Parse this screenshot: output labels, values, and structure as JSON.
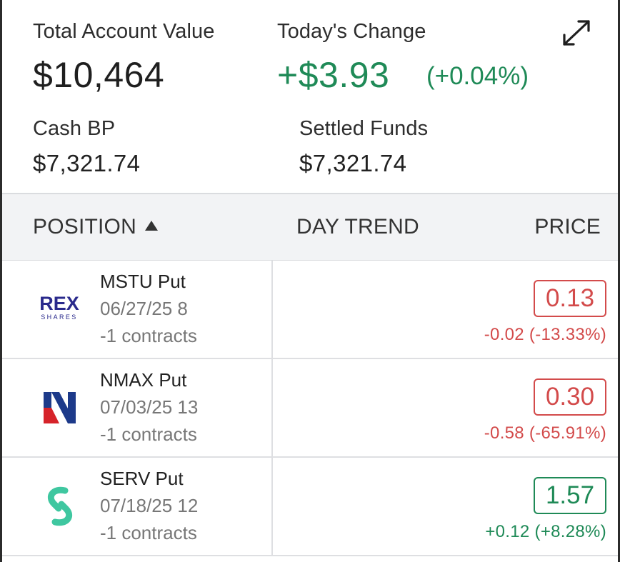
{
  "summary": {
    "total_label": "Total Account Value",
    "total_value": "$10,464",
    "change_label": "Today's Change",
    "change_value": "+$3.93",
    "change_pct": "(+0.04%)",
    "cash_label": "Cash BP",
    "cash_value": "$7,321.74",
    "settled_label": "Settled Funds",
    "settled_value": "$7,321.74",
    "expand_icon": "expand-arrows-icon"
  },
  "columns": {
    "position": "POSITION",
    "day_trend": "DAY TREND",
    "price": "PRICE",
    "sort_icon": "sort-ascending-icon"
  },
  "positions": [
    {
      "symbol": "MSTU Put",
      "expiry": "06/27/25 8",
      "quantity": "-1 contracts",
      "price": "0.13",
      "change": "-0.02 (-13.33%)",
      "direction": "neg",
      "logo": "rex-shares-logo",
      "logo_text": "REX",
      "logo_subtext": "SHARES"
    },
    {
      "symbol": "NMAX Put",
      "expiry": "07/03/25 13",
      "quantity": "-1 contracts",
      "price": "0.30",
      "change": "-0.58 (-65.91%)",
      "direction": "neg",
      "logo": "newsmax-logo"
    },
    {
      "symbol": "SERV Put",
      "expiry": "07/18/25 12",
      "quantity": "-1 contracts",
      "price": "1.57",
      "change": "+0.12 (+8.28%)",
      "direction": "pos",
      "logo": "serve-robotics-logo"
    }
  ],
  "colors": {
    "positive": "#1f8a57",
    "negative": "#d34b4b",
    "header_bg": "#f2f3f5",
    "rex_blue": "#2a2a8c",
    "newsmax_blue": "#1d3a8a",
    "newsmax_red": "#d6232a",
    "serve_green": "#3fc7a0"
  }
}
